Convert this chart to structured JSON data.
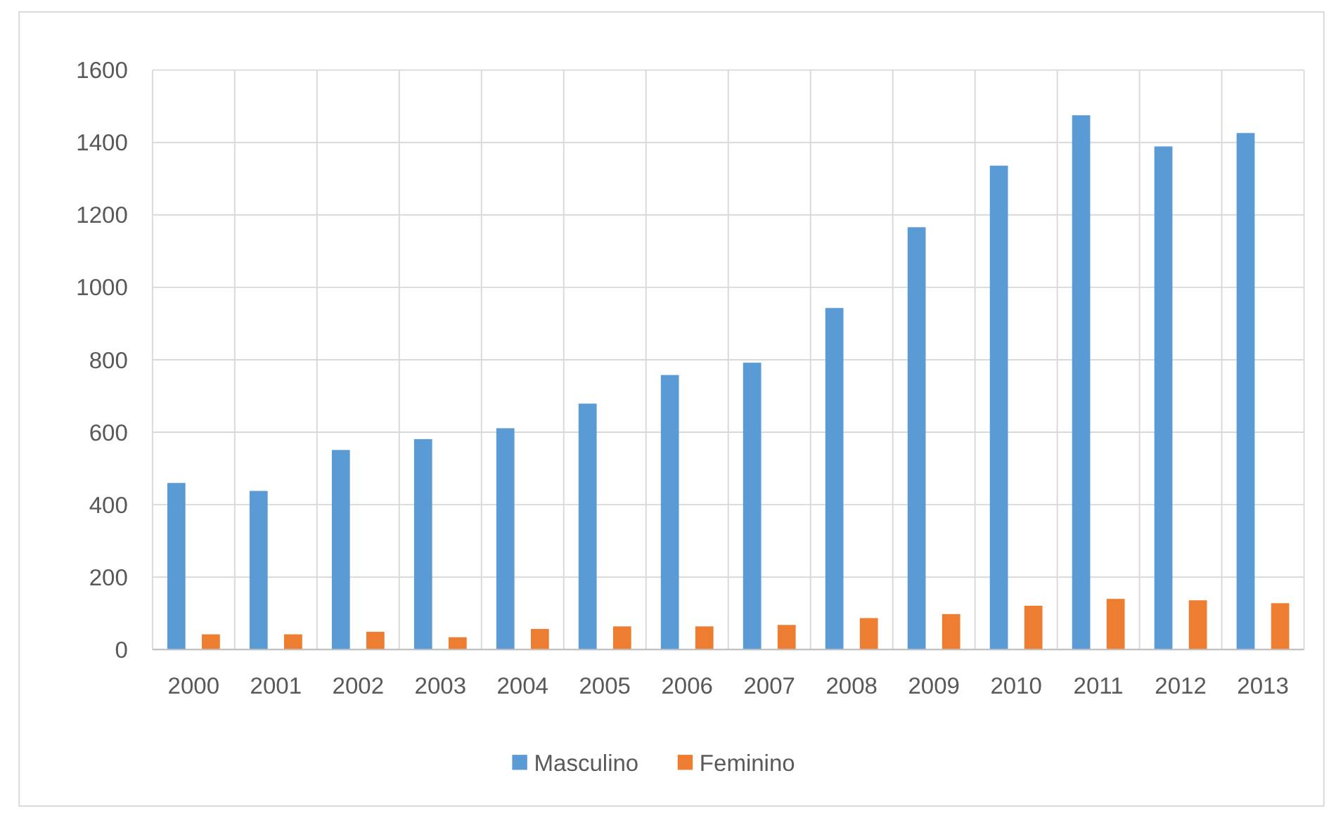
{
  "chart_data": {
    "type": "bar",
    "categories": [
      "2000",
      "2001",
      "2002",
      "2003",
      "2004",
      "2005",
      "2006",
      "2007",
      "2008",
      "2009",
      "2010",
      "2011",
      "2012",
      "2013"
    ],
    "series": [
      {
        "name": "Masculino",
        "color": "#5b9bd5",
        "values": [
          460,
          438,
          551,
          581,
          611,
          679,
          758,
          792,
          943,
          1166,
          1336,
          1475,
          1389,
          1426
        ]
      },
      {
        "name": "Feminino",
        "color": "#ed7d31",
        "values": [
          42,
          42,
          49,
          34,
          57,
          64,
          64,
          68,
          87,
          98,
          121,
          140,
          136,
          128
        ]
      }
    ],
    "ylim": [
      0,
      1600
    ],
    "yticks": [
      0,
      200,
      400,
      600,
      800,
      1000,
      1200,
      1400,
      1600
    ],
    "grid": true,
    "legend": "bottom"
  }
}
